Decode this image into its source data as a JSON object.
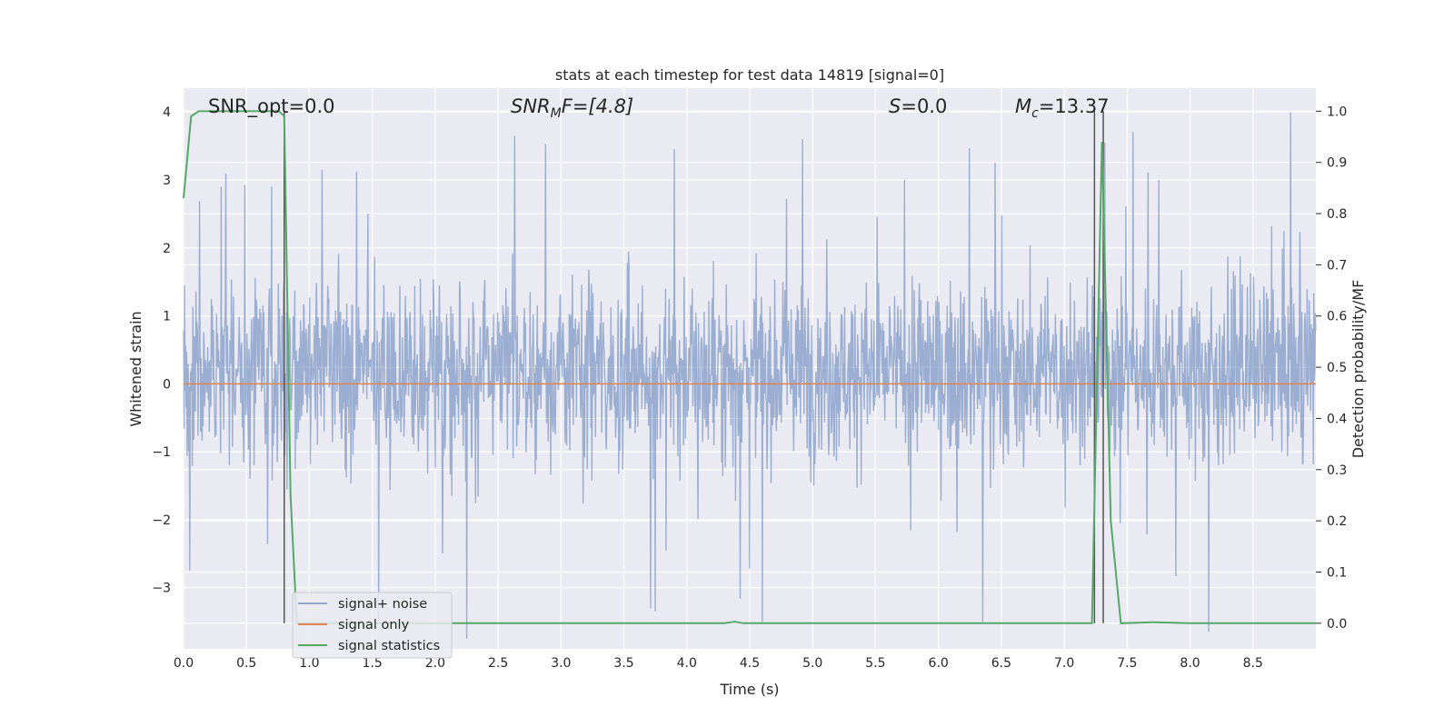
{
  "chart_data": {
    "type": "line",
    "title": "stats at each timestep for test data 14819 [signal=0]",
    "xlabel": "Time (s)",
    "ylabel_left": "Whitened strain",
    "ylabel_right": "Detection probability/MF",
    "xlim": [
      0.0,
      9.0
    ],
    "ylim_left": [
      -3.9,
      4.35
    ],
    "ylim_right": [
      -0.05,
      1.045
    ],
    "x_ticks": [
      "0.0",
      "0.5",
      "1.0",
      "1.5",
      "2.0",
      "2.5",
      "3.0",
      "3.5",
      "4.0",
      "4.5",
      "5.0",
      "5.5",
      "6.0",
      "6.5",
      "7.0",
      "7.5",
      "8.0",
      "8.5"
    ],
    "y_ticks_left": [
      "−3",
      "−2",
      "−1",
      "0",
      "1",
      "2",
      "3",
      "4"
    ],
    "y_ticks_right": [
      "0.0",
      "0.1",
      "0.2",
      "0.3",
      "0.4",
      "0.5",
      "0.6",
      "0.7",
      "0.8",
      "0.9",
      "1.0"
    ],
    "grid": true,
    "legend_position": "bottom-left",
    "annotations": {
      "snr_opt": "SNR_opt=0.0",
      "snr_mf_math": "SNR",
      "snr_mf_sub": "M",
      "snr_mf_rest": "F=[4.8]",
      "s_math": "S",
      "s_rest": "=0.0",
      "mc_math": "M",
      "mc_sub": "c",
      "mc_rest": "=13.37"
    },
    "series": [
      {
        "name": "signal+ noise",
        "axis": "left",
        "color": "#4c72b0",
        "note_style": "dense noise trace",
        "noise_band": [
          -1.3,
          1.7
        ],
        "spike_peaks_positive": [
          [
            0.3,
            2.9
          ],
          [
            0.7,
            2.9
          ],
          [
            1.1,
            3.15
          ],
          [
            2.63,
            3.65
          ],
          [
            3.9,
            3.45
          ],
          [
            4.92,
            3.6
          ],
          [
            5.73,
            3.0
          ],
          [
            6.45,
            3.25
          ],
          [
            7.32,
            3.55
          ],
          [
            7.75,
            3.0
          ],
          [
            8.8,
            4.0
          ]
        ],
        "spike_peaks_negative": [
          [
            0.05,
            -2.75
          ],
          [
            1.55,
            -3.5
          ],
          [
            2.25,
            -3.75
          ],
          [
            3.75,
            -3.35
          ],
          [
            4.6,
            -3.5
          ],
          [
            6.35,
            -3.5
          ],
          [
            8.15,
            -3.65
          ]
        ]
      },
      {
        "name": "signal only",
        "axis": "left",
        "color": "#dd8452",
        "x": [
          0.0,
          9.0
        ],
        "y": [
          0.0,
          0.0
        ]
      },
      {
        "name": "signal statistics",
        "axis": "right",
        "color": "#55a868",
        "x": [
          0.0,
          0.06,
          0.12,
          0.76,
          0.8,
          0.85,
          0.9,
          4.3,
          4.38,
          4.45,
          6.9,
          7.22,
          7.3,
          7.37,
          7.45,
          7.7,
          8.0,
          9.0
        ],
        "y": [
          0.83,
          0.99,
          1.0,
          1.0,
          0.99,
          0.25,
          0.0,
          0.0,
          0.003,
          0.0,
          0.0,
          0.0,
          0.94,
          0.2,
          0.0,
          0.002,
          0.0,
          0.0
        ]
      }
    ],
    "vertical_lines_s": [
      0.8,
      7.24,
      7.31
    ],
    "vertical_line_color": "#555555"
  }
}
